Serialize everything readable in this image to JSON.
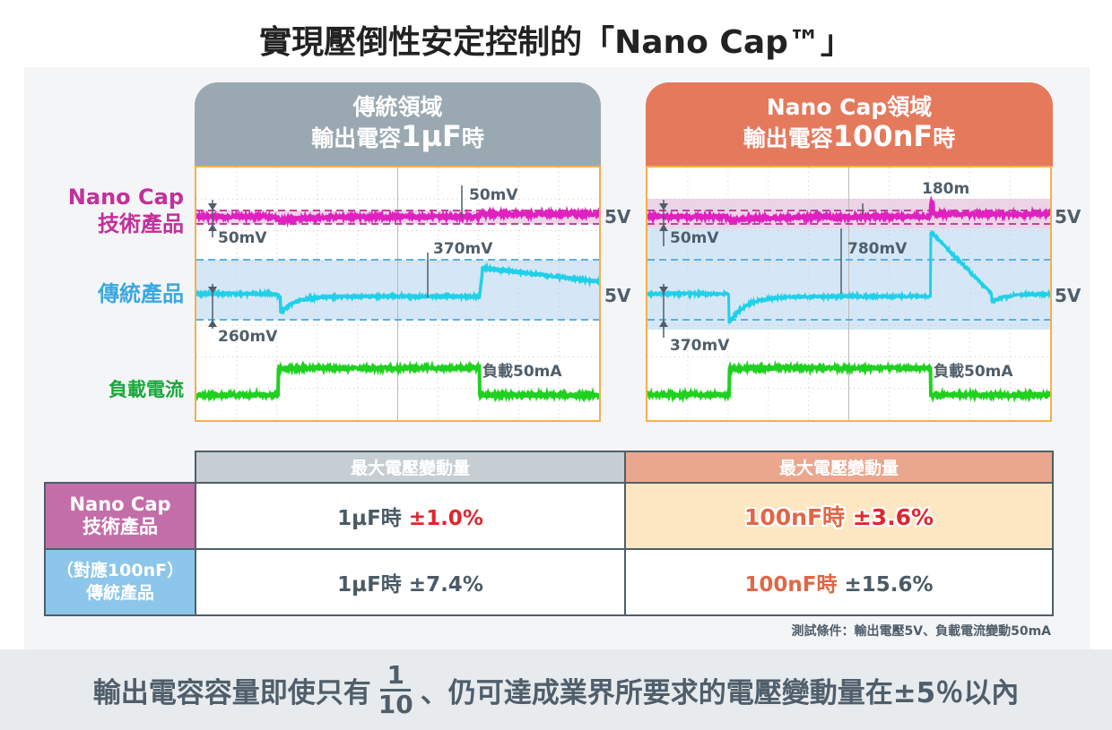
{
  "title": "實現壓倒性安定控制的「Nano Cap™」",
  "left_header": {
    "line1": "傳統領域",
    "line2a": "輸出電容",
    "line2b": "1µF",
    "line2c": "時",
    "color": "#9aa9b1"
  },
  "right_header": {
    "line1": "Nano Cap領域",
    "line2a": "輸出電容",
    "line2b": "100nF",
    "line2c": "時",
    "color": "#e5795c"
  },
  "row_labels": {
    "nanocap": "Nano Cap\n技術產品",
    "legacy": "傳統產品",
    "load": "負載電流"
  },
  "colors": {
    "nanocap": "#e020c0",
    "legacy": "#20d0e8",
    "load": "#20d020",
    "nanocap_label": "#c2309a",
    "legacy_label": "#3aa8e0",
    "load_label": "#18a83a"
  },
  "left_scope": {
    "nano_top": "50mV",
    "nano_bottom": "50mV",
    "legacy_top": "370mV",
    "legacy_bottom": "260mV",
    "load": "負載50mA",
    "v1": "5V",
    "v2": "5V"
  },
  "right_scope": {
    "nano_top": "180m",
    "nano_bottom": "50mV",
    "legacy_top": "780mV",
    "legacy_bottom": "370mV",
    "load": "負載50mA",
    "v1": "5V",
    "v2": "5V"
  },
  "table": {
    "header": "最大電壓變動量",
    "rows": [
      {
        "label": "Nano Cap\n技術產品",
        "c1a": "1µF時 ",
        "c1b": "±1.0%",
        "c2a": "100nF時 ",
        "c2b": "±3.6%"
      },
      {
        "label": "（對應100nF）\n傳統產品",
        "c1a": "1µF時 ",
        "c1b": "±7.4%",
        "c2a": "100nF時 ",
        "c2b": "±15.6%"
      }
    ]
  },
  "note": "測試條件：輸出電壓5V、負載電流變動50mA",
  "bottom": {
    "pre": "輸出電容容量即使只有",
    "num": "1",
    "den": "10",
    "post": "、仍可達成業界所要求的電壓變動量在±5％以內"
  }
}
